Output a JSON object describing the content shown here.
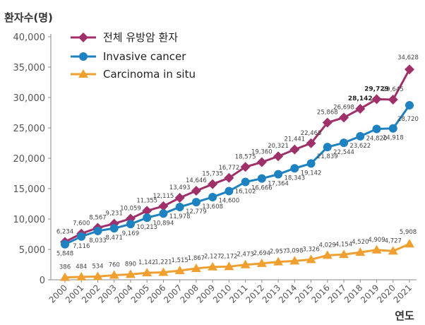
{
  "chart_data": {
    "type": "line",
    "ylabel": "환자수(명)",
    "xlabel": "연도",
    "ylim": [
      0,
      40000
    ],
    "yticks": [
      "0",
      "5,000",
      "10,000",
      "15,000",
      "20,000",
      "25,000",
      "30,000",
      "35,000",
      "40,000"
    ],
    "x": [
      "2000",
      "2001",
      "2002",
      "2003",
      "2004",
      "2005",
      "2006",
      "2007",
      "2008",
      "2009",
      "2010",
      "2011",
      "2012",
      "2013",
      "2014",
      "2015",
      "2016",
      "2017",
      "2018",
      "2019",
      "2020",
      "2021"
    ],
    "grid": false,
    "legend_position": "top-left",
    "series": [
      {
        "name": "전체 유방암 환자",
        "color": "#A0306A",
        "marker": "diamond",
        "values": [
          6234,
          7600,
          8567,
          9231,
          10059,
          11355,
          12115,
          13493,
          14646,
          15735,
          16772,
          18575,
          19360,
          20321,
          21441,
          22468,
          25868,
          26698,
          28142,
          29729,
          29645,
          34628
        ],
        "labels": [
          "6,234",
          "7,600",
          "8,567",
          "9,231",
          "10,059",
          "11,355",
          "12,115",
          "13,493",
          "14,646",
          "15,735",
          "16,772",
          "18,575",
          "19,360",
          "20,321",
          "21,441",
          "22,468",
          "25,868",
          "26,698",
          "28,142",
          "29,729",
          "29,645",
          "34,628"
        ]
      },
      {
        "name": "Invasive cancer",
        "color": "#1F82C0",
        "marker": "circle",
        "values": [
          5848,
          7116,
          8033,
          8471,
          9169,
          10213,
          10894,
          11978,
          12779,
          13608,
          14600,
          16102,
          16666,
          17364,
          18343,
          19142,
          21839,
          22544,
          23622,
          24820,
          24918,
          28720
        ],
        "labels": [
          "5,848",
          "7,116",
          "8,033",
          "8,471",
          "9,169",
          "10,213",
          "10,894",
          "11,978",
          "12,779",
          "13,608",
          "14,600",
          "16,102",
          "16,666",
          "17,364",
          "18,343",
          "19,142",
          "21,839",
          "22,544",
          "23,622",
          "24,820",
          "24,918",
          "28,720"
        ]
      },
      {
        "name": "Carcinoma in situ",
        "color": "#F0A030",
        "marker": "triangle",
        "values": [
          386,
          484,
          534,
          760,
          890,
          1142,
          1221,
          1515,
          1867,
          2127,
          2172,
          2473,
          2694,
          2957,
          3098,
          3326,
          4029,
          4154,
          4520,
          4909,
          4727,
          5908
        ],
        "labels": [
          "386",
          "484",
          "534",
          "760",
          "890",
          "1,142",
          "1,221",
          "1,515",
          "1,867",
          "2,127",
          "2,172",
          "2,473",
          "2,694",
          "2,957",
          "3,098",
          "3,326",
          "4,029",
          "4,154",
          "4,520",
          "4,909",
          "4,727",
          "5,908"
        ]
      }
    ]
  }
}
